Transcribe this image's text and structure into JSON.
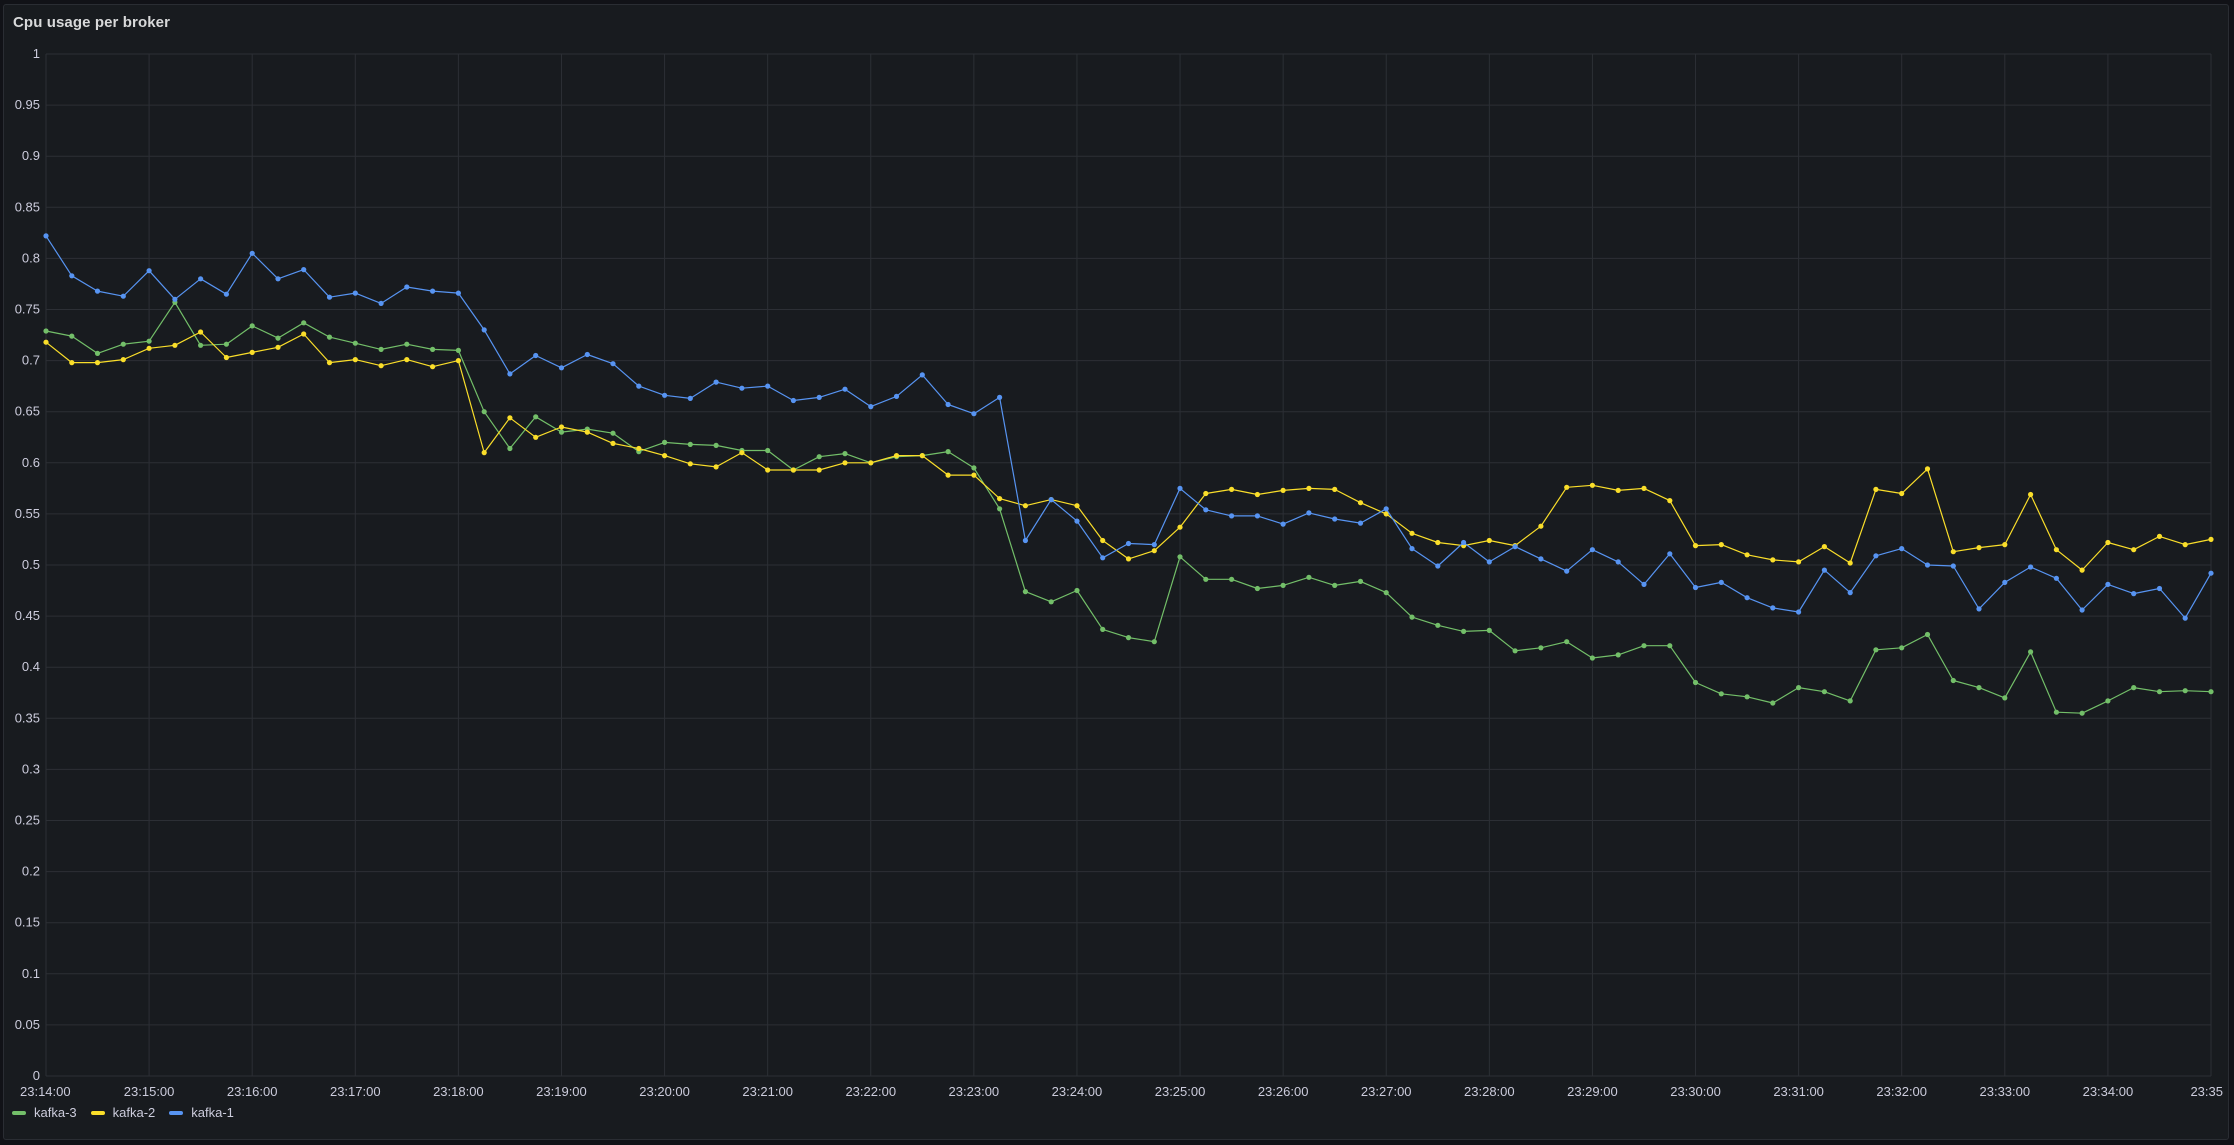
{
  "panel": {
    "title": "Cpu usage per broker"
  },
  "legend": [
    {
      "name": "kafka-3",
      "color": "#73bf69"
    },
    {
      "name": "kafka-2",
      "color": "#fade2a"
    },
    {
      "name": "kafka-1",
      "color": "#5794f2"
    }
  ],
  "chart_data": {
    "type": "line",
    "ylim": [
      0,
      1
    ],
    "y_ticks": [
      "0",
      "0.05",
      "0.1",
      "0.15",
      "0.2",
      "0.25",
      "0.3",
      "0.35",
      "0.4",
      "0.45",
      "0.5",
      "0.55",
      "0.6",
      "0.65",
      "0.7",
      "0.75",
      "0.8",
      "0.85",
      "0.9",
      "0.95",
      "1"
    ],
    "x_ticks": [
      "23:14:00",
      "23:15:00",
      "23:16:00",
      "23:17:00",
      "23:18:00",
      "23:19:00",
      "23:20:00",
      "23:21:00",
      "23:22:00",
      "23:23:00",
      "23:24:00",
      "23:25:00",
      "23:26:00",
      "23:27:00",
      "23:28:00",
      "23:29:00",
      "23:30:00",
      "23:31:00",
      "23:32:00",
      "23:33:00",
      "23:34:00",
      "23:35"
    ],
    "x_start": "23:14:00",
    "x_step_seconds": 15,
    "x_domain": [
      "23:14:00",
      "23:35:00"
    ],
    "grid": true,
    "legend_position": "bottom-left",
    "series": [
      {
        "name": "kafka-3",
        "color": "#73bf69",
        "values": [
          0.729,
          0.724,
          0.707,
          0.716,
          0.719,
          0.757,
          0.715,
          0.716,
          0.734,
          0.722,
          0.737,
          0.723,
          0.717,
          0.711,
          0.716,
          0.711,
          0.71,
          0.65,
          0.614,
          0.645,
          0.63,
          0.633,
          0.629,
          0.611,
          0.62,
          0.618,
          0.617,
          0.612,
          0.612,
          0.593,
          0.606,
          0.609,
          0.6,
          0.606,
          0.607,
          0.611,
          0.595,
          0.555,
          0.474,
          0.464,
          0.475,
          0.437,
          0.429,
          0.425,
          0.508,
          0.486,
          0.486,
          0.477,
          0.48,
          0.488,
          0.48,
          0.484,
          0.473,
          0.449,
          0.441,
          0.435,
          0.436,
          0.416,
          0.419,
          0.425,
          0.409,
          0.412,
          0.421,
          0.421,
          0.385,
          0.374,
          0.371,
          0.365,
          0.38,
          0.376,
          0.367,
          0.417,
          0.419,
          0.432,
          0.387,
          0.38,
          0.37,
          0.415,
          0.356,
          0.355,
          0.367,
          0.38,
          0.376,
          0.377,
          0.376
        ]
      },
      {
        "name": "kafka-2",
        "color": "#fade2a",
        "values": [
          0.718,
          0.698,
          0.698,
          0.701,
          0.712,
          0.715,
          0.728,
          0.703,
          0.708,
          0.713,
          0.726,
          0.698,
          0.701,
          0.695,
          0.701,
          0.694,
          0.7,
          0.61,
          0.644,
          0.625,
          0.635,
          0.63,
          0.619,
          0.614,
          0.607,
          0.599,
          0.596,
          0.61,
          0.593,
          0.593,
          0.593,
          0.6,
          0.6,
          0.607,
          0.607,
          0.588,
          0.588,
          0.565,
          0.558,
          0.564,
          0.558,
          0.524,
          0.506,
          0.514,
          0.537,
          0.57,
          0.574,
          0.569,
          0.573,
          0.575,
          0.574,
          0.561,
          0.55,
          0.531,
          0.522,
          0.519,
          0.524,
          0.519,
          0.538,
          0.576,
          0.578,
          0.573,
          0.575,
          0.563,
          0.519,
          0.52,
          0.51,
          0.505,
          0.503,
          0.518,
          0.502,
          0.574,
          0.57,
          0.594,
          0.513,
          0.517,
          0.52,
          0.569,
          0.515,
          0.495,
          0.522,
          0.515,
          0.528,
          0.52,
          0.525
        ]
      },
      {
        "name": "kafka-1",
        "color": "#5794f2",
        "values": [
          0.822,
          0.783,
          0.768,
          0.763,
          0.788,
          0.76,
          0.78,
          0.765,
          0.805,
          0.78,
          0.789,
          0.762,
          0.766,
          0.756,
          0.772,
          0.768,
          0.766,
          0.73,
          0.687,
          0.705,
          0.693,
          0.706,
          0.697,
          0.675,
          0.666,
          0.663,
          0.679,
          0.673,
          0.675,
          0.661,
          0.664,
          0.672,
          0.655,
          0.665,
          0.686,
          0.657,
          0.648,
          0.664,
          0.524,
          0.564,
          0.543,
          0.507,
          0.521,
          0.52,
          0.575,
          0.554,
          0.548,
          0.548,
          0.54,
          0.551,
          0.545,
          0.541,
          0.555,
          0.516,
          0.499,
          0.522,
          0.503,
          0.518,
          0.506,
          0.494,
          0.515,
          0.503,
          0.481,
          0.511,
          0.478,
          0.483,
          0.468,
          0.458,
          0.454,
          0.495,
          0.473,
          0.509,
          0.516,
          0.5,
          0.499,
          0.457,
          0.483,
          0.498,
          0.487,
          0.456,
          0.481,
          0.472,
          0.477,
          0.448,
          0.492
        ]
      }
    ]
  }
}
